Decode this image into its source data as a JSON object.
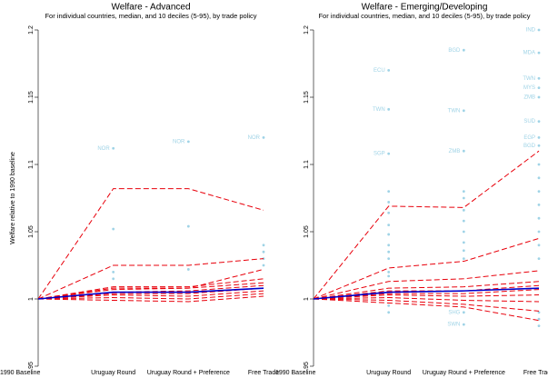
{
  "chart_data": [
    {
      "type": "line",
      "title": "Welfare - Advanced",
      "subtitle": "For individual countries, median, and 10 deciles (5-95), by trade policy",
      "ylabel": "Welfare relative to 1990 baseline",
      "categories": [
        "1990 Baseline",
        "Uruguay Round",
        "Uruguay Round + Preference",
        "Free Trade"
      ],
      "ylim": [
        0.95,
        1.2
      ],
      "yticks": [
        {
          "value": 0.95,
          "label": ".95"
        },
        1,
        1.05,
        1.1,
        1.15,
        1.2
      ],
      "series": [
        {
          "color": "#e8000b",
          "dashed": true,
          "values": [
            1,
            1.082,
            1.082,
            1.066
          ]
        },
        {
          "color": "#e8000b",
          "dashed": true,
          "values": [
            1,
            1.025,
            1.025,
            1.03
          ]
        },
        {
          "color": "#e8000b",
          "dashed": true,
          "values": [
            1,
            1.008,
            1.008,
            1.022
          ]
        },
        {
          "color": "#e8000b",
          "dashed": true,
          "values": [
            1,
            1.009,
            1.009,
            1.015
          ]
        },
        {
          "color": "#e8000b",
          "dashed": true,
          "values": [
            1,
            1.007,
            1.008,
            1.012
          ]
        },
        {
          "color": "#e8000b",
          "dashed": true,
          "values": [
            1,
            1.005,
            1.006,
            1.01
          ]
        },
        {
          "color": "#e8000b",
          "dashed": true,
          "values": [
            1,
            1.004,
            1.004,
            1.008
          ]
        },
        {
          "color": "#e8000b",
          "dashed": true,
          "values": [
            1,
            1.003,
            1.002,
            1.006
          ]
        },
        {
          "color": "#e8000b",
          "dashed": true,
          "values": [
            1,
            1.001,
            1.0,
            1.004
          ]
        },
        {
          "color": "#e8000b",
          "dashed": true,
          "values": [
            1,
            0.999,
            0.998,
            1.002
          ]
        },
        {
          "color": "#0000cc",
          "dashed": false,
          "values": [
            1,
            1.005,
            1.005,
            1.008
          ]
        }
      ],
      "point_color": "#9fd3e6",
      "points": [
        [],
        [
          1.112,
          1.052,
          1.02,
          1.015
        ],
        [
          1.117,
          1.054,
          1.022
        ],
        [
          1.12,
          1.04,
          1.035,
          1.03,
          1.025
        ]
      ],
      "point_labels": [
        [],
        [
          "NOR",
          null,
          null,
          null
        ],
        [
          "NOR",
          null,
          null
        ],
        [
          "NOR",
          null,
          null,
          null,
          null
        ]
      ]
    },
    {
      "type": "line",
      "title": "Welfare - Emerging/Developing",
      "subtitle": "For individual countries, median, and 10 deciles (5-95), by trade policy",
      "categories": [
        "1990 Baseline",
        "Uruguay Round",
        "Uruguay Round + Preference",
        "Free Trade"
      ],
      "ylim": [
        0.95,
        1.2
      ],
      "yticks": [
        {
          "value": 0.95,
          "label": ".95"
        },
        1,
        1.05,
        1.1,
        1.15,
        1.2
      ],
      "series": [
        {
          "color": "#e8000b",
          "dashed": true,
          "values": [
            1,
            1.069,
            1.068,
            1.11
          ]
        },
        {
          "color": "#e8000b",
          "dashed": true,
          "values": [
            1,
            1.023,
            1.028,
            1.045
          ]
        },
        {
          "color": "#e8000b",
          "dashed": true,
          "values": [
            1,
            1.013,
            1.015,
            1.021
          ]
        },
        {
          "color": "#e8000b",
          "dashed": true,
          "values": [
            1,
            1.008,
            1.009,
            1.013
          ]
        },
        {
          "color": "#e8000b",
          "dashed": true,
          "values": [
            1,
            1.006,
            1.006,
            1.01
          ]
        },
        {
          "color": "#e8000b",
          "dashed": true,
          "values": [
            1,
            1.004,
            1.004,
            1.007
          ]
        },
        {
          "color": "#e8000b",
          "dashed": true,
          "values": [
            1,
            1.003,
            1.002,
            1.003
          ]
        },
        {
          "color": "#e8000b",
          "dashed": true,
          "values": [
            1,
            1.001,
            0.999,
            0.998
          ]
        },
        {
          "color": "#e8000b",
          "dashed": true,
          "values": [
            1,
            0.999,
            0.996,
            0.991
          ]
        },
        {
          "color": "#e8000b",
          "dashed": true,
          "values": [
            1,
            0.997,
            0.994,
            0.984
          ]
        },
        {
          "color": "#0000cc",
          "dashed": false,
          "values": [
            1,
            1.005,
            1.006,
            1.008
          ]
        }
      ],
      "point_color": "#9fd3e6",
      "points": [
        [],
        [
          1.17,
          1.141,
          1.108,
          1.08,
          1.072,
          1.064,
          1.055,
          1.048,
          1.04,
          1.035,
          1.03,
          1.02,
          1.017,
          0.995,
          0.99
        ],
        [
          1.185,
          1.14,
          1.11,
          1.08,
          1.075,
          1.066,
          1.058,
          1.05,
          1.042,
          1.036,
          1.03,
          0.99,
          0.981
        ],
        [
          1.2,
          1.183,
          1.164,
          1.157,
          1.15,
          1.132,
          1.12,
          1.114,
          1.1,
          1.09,
          1.08,
          1.07,
          1.06,
          1.05,
          1.04,
          1.03,
          0.99,
          0.985,
          0.98
        ]
      ],
      "point_labels": [
        [],
        [
          "ECU",
          "TWN",
          "SGP",
          null,
          null,
          null,
          null,
          null,
          null,
          null,
          null,
          null,
          null,
          null,
          null
        ],
        [
          "BGD",
          "TWN",
          "ZMB",
          null,
          null,
          null,
          null,
          null,
          null,
          null,
          null,
          "SHG",
          "SWN"
        ],
        [
          "IND",
          "MDA",
          "TWN",
          "MYS",
          "ZMB",
          "SUD",
          "EGP",
          "BGD",
          null,
          null,
          null,
          null,
          null,
          null,
          null,
          null,
          null,
          null,
          null
        ]
      ]
    }
  ]
}
